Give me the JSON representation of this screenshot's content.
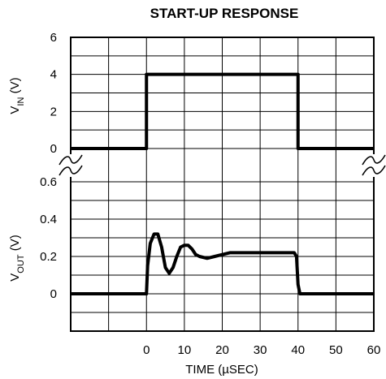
{
  "chart_data": {
    "type": "line",
    "title": "START-UP RESPONSE",
    "xlabel": "TIME (µSEC)",
    "xlim": [
      -20,
      60
    ],
    "x_ticks": [
      0,
      10,
      20,
      30,
      40,
      50,
      60
    ],
    "panels": [
      {
        "ylabel_main": "V",
        "ylabel_sub": "IN",
        "ylabel_unit": " (V)",
        "ylim": [
          0,
          6
        ],
        "y_ticks": [
          0,
          2,
          4,
          6
        ],
        "series": [
          {
            "x": [
              -20,
              0,
              0,
              40,
              40,
              60
            ],
            "y": [
              0,
              0,
              4,
              4,
              0,
              0
            ]
          }
        ]
      },
      {
        "ylabel_main": "V",
        "ylabel_sub": "OUT",
        "ylabel_unit": " (V)",
        "ylim": [
          -0.2,
          0.6
        ],
        "y_ticks": [
          0,
          0.2,
          0.4,
          0.6
        ],
        "series": [
          {
            "x": [
              -20,
              0,
              0.3,
              1,
              2,
              3,
              4,
              5,
              6,
              7,
              8,
              9,
              10,
              11,
              12,
              13,
              14,
              16,
              18,
              20,
              22,
              25,
              30,
              35,
              39,
              39.6,
              40,
              40.5,
              60
            ],
            "y": [
              0,
              0,
              0.15,
              0.27,
              0.32,
              0.32,
              0.25,
              0.14,
              0.11,
              0.14,
              0.2,
              0.25,
              0.26,
              0.26,
              0.24,
              0.21,
              0.2,
              0.19,
              0.2,
              0.21,
              0.22,
              0.22,
              0.22,
              0.22,
              0.22,
              0.2,
              0.05,
              0,
              0
            ]
          }
        ]
      }
    ]
  }
}
